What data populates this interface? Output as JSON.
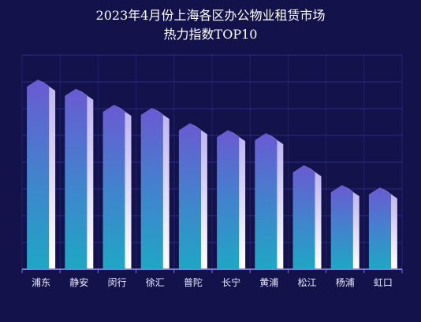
{
  "chart_data": {
    "type": "bar",
    "title_lines": [
      "2023年4月份上海各区办公物业租赁市场",
      "热力指数TOP10"
    ],
    "categories": [
      "浦东",
      "静安",
      "闵行",
      "徐汇",
      "普陀",
      "长宁",
      "黄浦",
      "松江",
      "杨浦",
      "虹口"
    ],
    "values": [
      248,
      236,
      215,
      211,
      191,
      182,
      178,
      136,
      110,
      107
    ],
    "ylim": [
      0,
      280
    ],
    "grid": true,
    "xlabel": "",
    "ylabel": ""
  },
  "colors": {
    "background": "#14124a",
    "grid": "#2a2a8a",
    "axis": "#7b7bd6",
    "bar_top": "#6a5ad2",
    "bar_mid": "#3f86cc",
    "bar_bottom": "#1ea7c4",
    "bar_highlight_top": "#bfb6f2",
    "bar_highlight_bottom": "#ffffff",
    "bar_cap": "#8f82e6"
  }
}
